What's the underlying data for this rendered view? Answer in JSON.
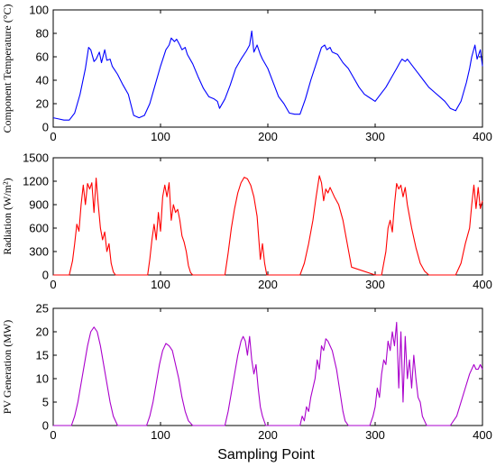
{
  "figure": {
    "xlabel": "Sampling Point"
  },
  "chart_data": [
    {
      "type": "line",
      "ylabel": "Component Temperature (°C)",
      "xlim": [
        0,
        400
      ],
      "ylim": [
        0,
        100
      ],
      "xticks": [
        "0",
        "100",
        "200",
        "300",
        "400"
      ],
      "yticks": [
        "0",
        "20",
        "40",
        "60",
        "80",
        "100"
      ],
      "grid": false,
      "series": [
        {
          "color": "#0000ff",
          "x": [
            0,
            5,
            10,
            15,
            20,
            25,
            30,
            33,
            35,
            38,
            40,
            43,
            45,
            48,
            50,
            53,
            55,
            60,
            65,
            70,
            75,
            80,
            85,
            90,
            95,
            100,
            105,
            108,
            110,
            113,
            115,
            118,
            120,
            123,
            125,
            130,
            135,
            140,
            145,
            150,
            153,
            155,
            160,
            165,
            170,
            175,
            180,
            183,
            185,
            187,
            190,
            193,
            195,
            200,
            205,
            210,
            215,
            220,
            225,
            230,
            235,
            240,
            245,
            250,
            253,
            255,
            258,
            260,
            265,
            270,
            275,
            280,
            285,
            290,
            295,
            300,
            305,
            310,
            315,
            320,
            323,
            325,
            328,
            330,
            335,
            340,
            345,
            350,
            355,
            360,
            365,
            370,
            375,
            380,
            385,
            388,
            390,
            393,
            395,
            398,
            400
          ],
          "values": [
            8,
            7,
            6,
            6,
            12,
            28,
            50,
            68,
            66,
            56,
            58,
            64,
            55,
            66,
            57,
            58,
            52,
            45,
            36,
            28,
            10,
            8,
            10,
            20,
            36,
            52,
            66,
            70,
            76,
            73,
            75,
            70,
            66,
            68,
            62,
            54,
            43,
            33,
            26,
            24,
            22,
            16,
            24,
            36,
            50,
            58,
            65,
            70,
            82,
            64,
            70,
            62,
            58,
            50,
            38,
            26,
            20,
            12,
            11,
            11,
            24,
            40,
            54,
            68,
            70,
            66,
            68,
            64,
            62,
            55,
            50,
            42,
            34,
            28,
            25,
            22,
            28,
            34,
            42,
            50,
            55,
            58,
            56,
            58,
            52,
            46,
            40,
            34,
            30,
            26,
            22,
            16,
            14,
            22,
            38,
            50,
            60,
            70,
            58,
            66,
            52
          ]
        }
      ]
    },
    {
      "type": "line",
      "ylabel": "Radiation (W/m²)",
      "xlim": [
        0,
        400
      ],
      "ylim": [
        0,
        1500
      ],
      "xticks": [
        "0",
        "100",
        "200",
        "300",
        "400"
      ],
      "yticks": [
        "0",
        "300",
        "600",
        "900",
        "1200",
        "1500"
      ],
      "grid": false,
      "series": [
        {
          "color": "#ff0000",
          "x": [
            0,
            15,
            18,
            20,
            22,
            24,
            26,
            28,
            30,
            32,
            34,
            36,
            38,
            40,
            42,
            44,
            46,
            48,
            50,
            52,
            54,
            56,
            58,
            60,
            88,
            90,
            92,
            94,
            96,
            98,
            100,
            102,
            104,
            106,
            108,
            110,
            112,
            114,
            116,
            118,
            120,
            122,
            124,
            126,
            128,
            130,
            160,
            163,
            166,
            169,
            172,
            175,
            178,
            181,
            184,
            187,
            190,
            193,
            195,
            197,
            199,
            230,
            234,
            238,
            242,
            245,
            248,
            250,
            252,
            254,
            256,
            258,
            262,
            266,
            270,
            274,
            278,
            300,
            306,
            310,
            312,
            314,
            316,
            318,
            320,
            322,
            324,
            326,
            328,
            330,
            334,
            338,
            342,
            346,
            350,
            375,
            380,
            384,
            388,
            390,
            392,
            394,
            396,
            398,
            400
          ],
          "values": [
            0,
            0,
            180,
            400,
            650,
            560,
            900,
            1150,
            900,
            1170,
            1100,
            1180,
            800,
            1240,
            900,
            600,
            450,
            550,
            300,
            400,
            150,
            40,
            0,
            0,
            0,
            200,
            450,
            650,
            450,
            800,
            560,
            1000,
            1150,
            1000,
            1180,
            700,
            900,
            800,
            840,
            700,
            500,
            420,
            300,
            120,
            30,
            0,
            0,
            280,
            600,
            850,
            1050,
            1180,
            1250,
            1230,
            1150,
            1000,
            750,
            200,
            400,
            150,
            0,
            0,
            150,
            400,
            700,
            1000,
            1270,
            1180,
            950,
            1100,
            1050,
            1120,
            1000,
            900,
            700,
            400,
            100,
            0,
            0,
            300,
            600,
            700,
            550,
            900,
            1170,
            1100,
            1150,
            1000,
            1120,
            900,
            600,
            350,
            150,
            50,
            0,
            0,
            150,
            400,
            600,
            900,
            1150,
            850,
            1120,
            850,
            950
          ]
        }
      ]
    },
    {
      "type": "line",
      "ylabel": "PV Generation (MW)",
      "xlim": [
        0,
        400
      ],
      "ylim": [
        0,
        25
      ],
      "xticks": [
        "0",
        "100",
        "200",
        "300",
        "400"
      ],
      "yticks": [
        "0",
        "5",
        "10",
        "15",
        "20",
        "25"
      ],
      "grid": false,
      "series": [
        {
          "color": "#aa00cc",
          "x": [
            0,
            17,
            20,
            23,
            26,
            29,
            32,
            35,
            38,
            41,
            44,
            47,
            50,
            53,
            56,
            60,
            87,
            90,
            93,
            96,
            99,
            102,
            105,
            108,
            111,
            114,
            117,
            120,
            123,
            126,
            130,
            160,
            163,
            166,
            169,
            172,
            175,
            177,
            179,
            181,
            183,
            185,
            187,
            189,
            191,
            193,
            195,
            198,
            230,
            232,
            234,
            236,
            238,
            240,
            242,
            244,
            246,
            248,
            250,
            252,
            254,
            256,
            258,
            260,
            262,
            264,
            266,
            268,
            270,
            272,
            275,
            295,
            298,
            300,
            302,
            304,
            306,
            308,
            310,
            312,
            314,
            316,
            318,
            320,
            322,
            324,
            326,
            328,
            330,
            332,
            334,
            336,
            338,
            340,
            342,
            344,
            346,
            348,
            370,
            376,
            380,
            384,
            388,
            392,
            394,
            396,
            398,
            400
          ],
          "values": [
            0,
            0,
            2,
            5,
            9,
            13,
            17,
            20,
            21,
            20,
            17,
            13,
            9,
            5,
            2,
            0,
            0,
            2,
            5,
            9,
            13,
            16,
            17.5,
            17,
            16,
            13,
            10,
            6,
            3,
            1,
            0,
            0,
            3,
            7,
            11,
            15,
            18,
            19,
            18,
            15,
            19,
            14,
            11,
            13,
            8,
            4,
            2,
            0,
            0,
            2,
            1,
            4,
            3,
            6,
            8,
            10,
            14,
            12,
            17,
            16,
            18.5,
            18,
            17,
            16,
            14,
            12,
            9,
            6,
            3,
            1,
            0,
            0,
            2,
            4,
            8,
            6,
            11,
            14,
            13,
            18,
            16,
            20,
            17,
            22,
            8,
            20,
            5,
            19,
            10,
            14,
            8,
            15,
            10,
            6,
            5,
            2,
            1,
            0,
            0,
            2,
            5,
            8,
            11,
            13,
            12,
            12,
            13,
            12
          ]
        }
      ]
    }
  ]
}
